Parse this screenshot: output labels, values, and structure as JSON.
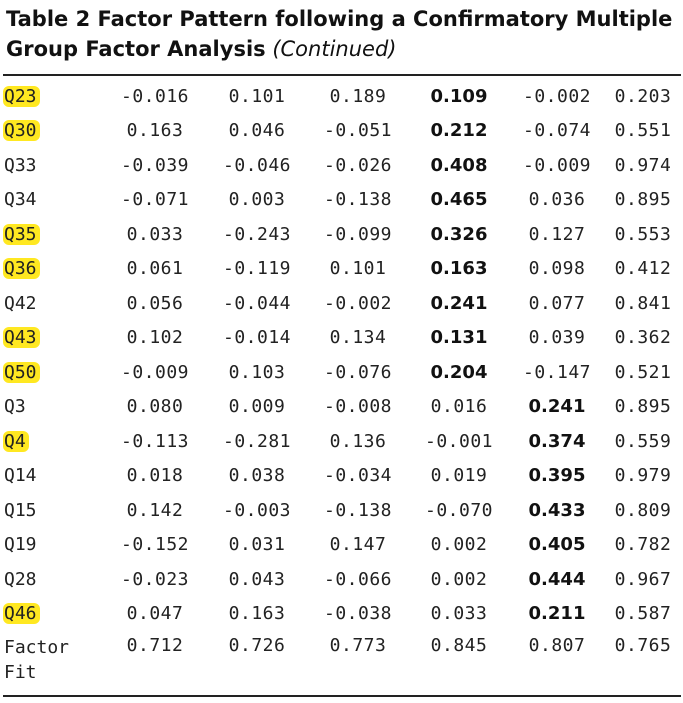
{
  "caption": {
    "bold": "Table 2 Factor Pattern following a Confirmatory Multiple Group Factor Analysis",
    "italic": "(Continued)"
  },
  "colors": {
    "highlight": "#ffe821",
    "text": "#222222",
    "rule": "#222222"
  },
  "rows": [
    {
      "label": "Q23",
      "highlighted": true,
      "values": [
        "-0.016",
        "0.101",
        "0.189",
        "0.109",
        "-0.002",
        "0.203"
      ],
      "bold_index": 3
    },
    {
      "label": "Q30",
      "highlighted": true,
      "values": [
        "0.163",
        "0.046",
        "-0.051",
        "0.212",
        "-0.074",
        "0.551"
      ],
      "bold_index": 3
    },
    {
      "label": "Q33",
      "highlighted": false,
      "values": [
        "-0.039",
        "-0.046",
        "-0.026",
        "0.408",
        "-0.009",
        "0.974"
      ],
      "bold_index": 3
    },
    {
      "label": "Q34",
      "highlighted": false,
      "values": [
        "-0.071",
        "0.003",
        "-0.138",
        "0.465",
        "0.036",
        "0.895"
      ],
      "bold_index": 3
    },
    {
      "label": "Q35",
      "highlighted": true,
      "values": [
        "0.033",
        "-0.243",
        "-0.099",
        "0.326",
        "0.127",
        "0.553"
      ],
      "bold_index": 3
    },
    {
      "label": "Q36",
      "highlighted": true,
      "values": [
        "0.061",
        "-0.119",
        "0.101",
        "0.163",
        "0.098",
        "0.412"
      ],
      "bold_index": 3
    },
    {
      "label": "Q42",
      "highlighted": false,
      "values": [
        "0.056",
        "-0.044",
        "-0.002",
        "0.241",
        "0.077",
        "0.841"
      ],
      "bold_index": 3
    },
    {
      "label": "Q43",
      "highlighted": true,
      "values": [
        "0.102",
        "-0.014",
        "0.134",
        "0.131",
        "0.039",
        "0.362"
      ],
      "bold_index": 3
    },
    {
      "label": "Q50",
      "highlighted": true,
      "values": [
        "-0.009",
        "0.103",
        "-0.076",
        "0.204",
        "-0.147",
        "0.521"
      ],
      "bold_index": 3
    },
    {
      "label": "Q3",
      "highlighted": false,
      "values": [
        "0.080",
        "0.009",
        "-0.008",
        "0.016",
        "0.241",
        "0.895"
      ],
      "bold_index": 4
    },
    {
      "label": "Q4",
      "highlighted": true,
      "values": [
        "-0.113",
        "-0.281",
        "0.136",
        "-0.001",
        "0.374",
        "0.559"
      ],
      "bold_index": 4
    },
    {
      "label": "Q14",
      "highlighted": false,
      "values": [
        "0.018",
        "0.038",
        "-0.034",
        "0.019",
        "0.395",
        "0.979"
      ],
      "bold_index": 4
    },
    {
      "label": "Q15",
      "highlighted": false,
      "values": [
        "0.142",
        "-0.003",
        "-0.138",
        "-0.070",
        "0.433",
        "0.809"
      ],
      "bold_index": 4
    },
    {
      "label": "Q19",
      "highlighted": false,
      "values": [
        "-0.152",
        "0.031",
        "0.147",
        "0.002",
        "0.405",
        "0.782"
      ],
      "bold_index": 4
    },
    {
      "label": "Q28",
      "highlighted": false,
      "values": [
        "-0.023",
        "0.043",
        "-0.066",
        "0.002",
        "0.444",
        "0.967"
      ],
      "bold_index": 4
    },
    {
      "label": "Q46",
      "highlighted": true,
      "values": [
        "0.047",
        "0.163",
        "-0.038",
        "0.033",
        "0.211",
        "0.587"
      ],
      "bold_index": 4
    }
  ],
  "factor_fit": {
    "label": "Factor Fit",
    "values": [
      "0.712",
      "0.726",
      "0.773",
      "0.845",
      "0.807",
      "0.765"
    ]
  }
}
